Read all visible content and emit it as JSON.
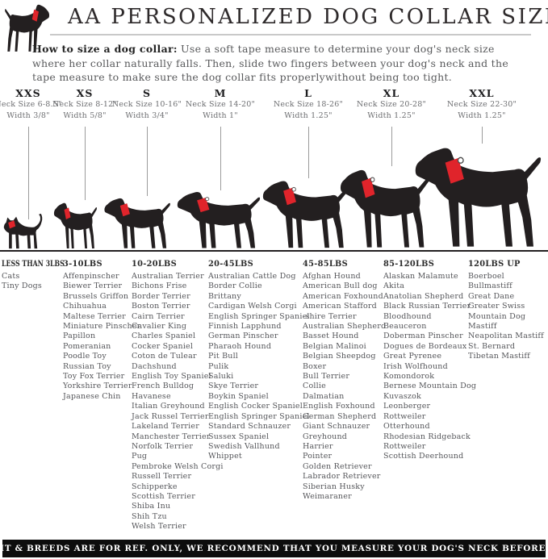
{
  "header": {
    "title": "AA PERSONALIZED DOG COLLAR SIZE GUIDE",
    "logo_icon": "black-dog-with-red-collar-logo"
  },
  "instructions": {
    "lead": "How to size a dog collar:",
    "body": " Use a soft tape measure to determine your dog's neck size where her collar naturally falls. Then, slide two fingers between your dog's neck and the tape measure to make sure the dog collar fits properlywithout being too tight."
  },
  "sizes": [
    {
      "label": "XXS",
      "neck": "Neck Size 6-8.5\"",
      "width": "Width 3/8\""
    },
    {
      "label": "XS",
      "neck": "Neck Size 8-12\"",
      "width": "Width 5/8\""
    },
    {
      "label": "S",
      "neck": "Neck Size 10-16\"",
      "width": "Width 3/4\""
    },
    {
      "label": "M",
      "neck": "Neck Size 14-20\"",
      "width": "Width 1\""
    },
    {
      "label": "L",
      "neck": "Neck Size 18-26\"",
      "width": "Width 1.25\""
    },
    {
      "label": "XL",
      "neck": "Neck Size 20-28\"",
      "width": "Width 1.25\""
    },
    {
      "label": "XXL",
      "neck": "Neck Size 22-30\"",
      "width": "Width 1.25\""
    }
  ],
  "weight_groups": [
    {
      "header": "LESS THAN 3LBS",
      "breeds": [
        "Cats",
        "Tiny Dogs"
      ]
    },
    {
      "header": "3-10LBS",
      "breeds": [
        "Affenpinscher",
        "Biewer Terrier",
        "Brussels Griffon",
        "Chihuahua",
        "Maltese Terrier",
        "Miniature Pinscher",
        "Papillon",
        "Pomeranian",
        "Poodle Toy",
        "Russian Toy",
        "Toy Fox Terrier",
        "Yorkshire Terrier",
        "Japanese Chin"
      ]
    },
    {
      "header": "10-20LBS",
      "breeds": [
        "Australian Terrier",
        "Bichons Frise",
        "Border Terrier",
        "Boston Terrier",
        "Cairn Terrier",
        "Cavalier King",
        "Charles Spaniel",
        "Cocker Spaniel",
        "Coton de Tulear",
        "Dachshund",
        "English Toy Spaniel",
        "French Bulldog",
        "Havanese",
        "Italian Greyhound",
        "Jack Russel Terrier",
        "Lakeland Terrier",
        "Manchester Terrier",
        "Norfolk Terrier",
        "Pug",
        "Pembroke Welsh Corgi",
        "Russell Terrier",
        "Schipperke",
        "Scottish Terrier",
        "Shiba Inu",
        "Shih Tzu",
        "Welsh Terrier"
      ]
    },
    {
      "header": "20-45LBS",
      "breeds": [
        "Australian Cattle Dog",
        "Border Collie",
        "Brittany",
        "Cardigan Welsh Corgi",
        "English Springer Spaniel",
        "Finnish Lapphund",
        "German Pinscher",
        "Pharaoh Hound",
        "Pit Bull",
        "Pulik",
        "Saluki",
        "Skye Terrier",
        "Boykin Spaniel",
        "English Cocker Spaniel",
        "English Springer Spaniel",
        "Standard Schnauzer",
        "Sussex Spaniel",
        "Swedish Vallhund",
        "Whippet"
      ]
    },
    {
      "header": "45-85LBS",
      "breeds": [
        "Afghan Hound",
        "American Bull dog",
        "American Foxhound",
        "American Stafford",
        "-shire Terrier",
        "Australian Shepherd",
        "Basset Hound",
        "Belgian Malinoi",
        "Belgian Sheepdog",
        "Boxer",
        "Bull Terrier",
        "Collie",
        "Dalmatian",
        "English Foxhound",
        "German Shepherd",
        "Giant Schnauzer",
        "Greyhound",
        "Harrier",
        "Pointer",
        "Golden Retriever",
        "Labrador Retriever",
        "Siberian Husky",
        "Weimaraner"
      ]
    },
    {
      "header": "85-120LBS",
      "breeds": [
        "Alaskan Malamute",
        "Akita",
        "Anatolian Shepherd",
        "Black Russian Terrier",
        "Bloodhound",
        "Beauceron",
        "Doberman Pinscher",
        "Dogues de Bordeaux",
        "Great Pyrenee",
        "Irish Wolfhound",
        "Komondorok",
        "Bernese Mountain Dog",
        "Kuvaszok",
        "Leonberger",
        "Rottweiler",
        "Otterhound",
        "Rhodesian Ridgeback",
        "Rottweiler",
        "Scottish Deerhound"
      ]
    },
    {
      "header": "120LBS UP",
      "breeds": [
        "Boerboel",
        "Bullmastiff",
        "Great Dane",
        "Greater Swiss",
        "Mountain Dog",
        "Mastiff",
        "Neapolitan Mastiff",
        "St. Bernard",
        "Tibetan Mastiff"
      ]
    }
  ],
  "silhouettes": [
    "cat-silhouette-xxs",
    "dog-silhouette-xs",
    "dog-silhouette-s",
    "dog-silhouette-m",
    "dog-silhouette-l",
    "dog-silhouette-xl",
    "dog-silhouette-xxl"
  ],
  "footer": {
    "text": "DOG WEIGHT & BREEDS ARE FOR REF. ONLY, WE RECOMMEND THAT YOU MEASURE YOUR DOG'S NECK BEFORE PURCHASE"
  },
  "colors": {
    "collar_red": "#e0242b",
    "silhouette_black": "#231f20",
    "body_gray": "#58595b"
  }
}
